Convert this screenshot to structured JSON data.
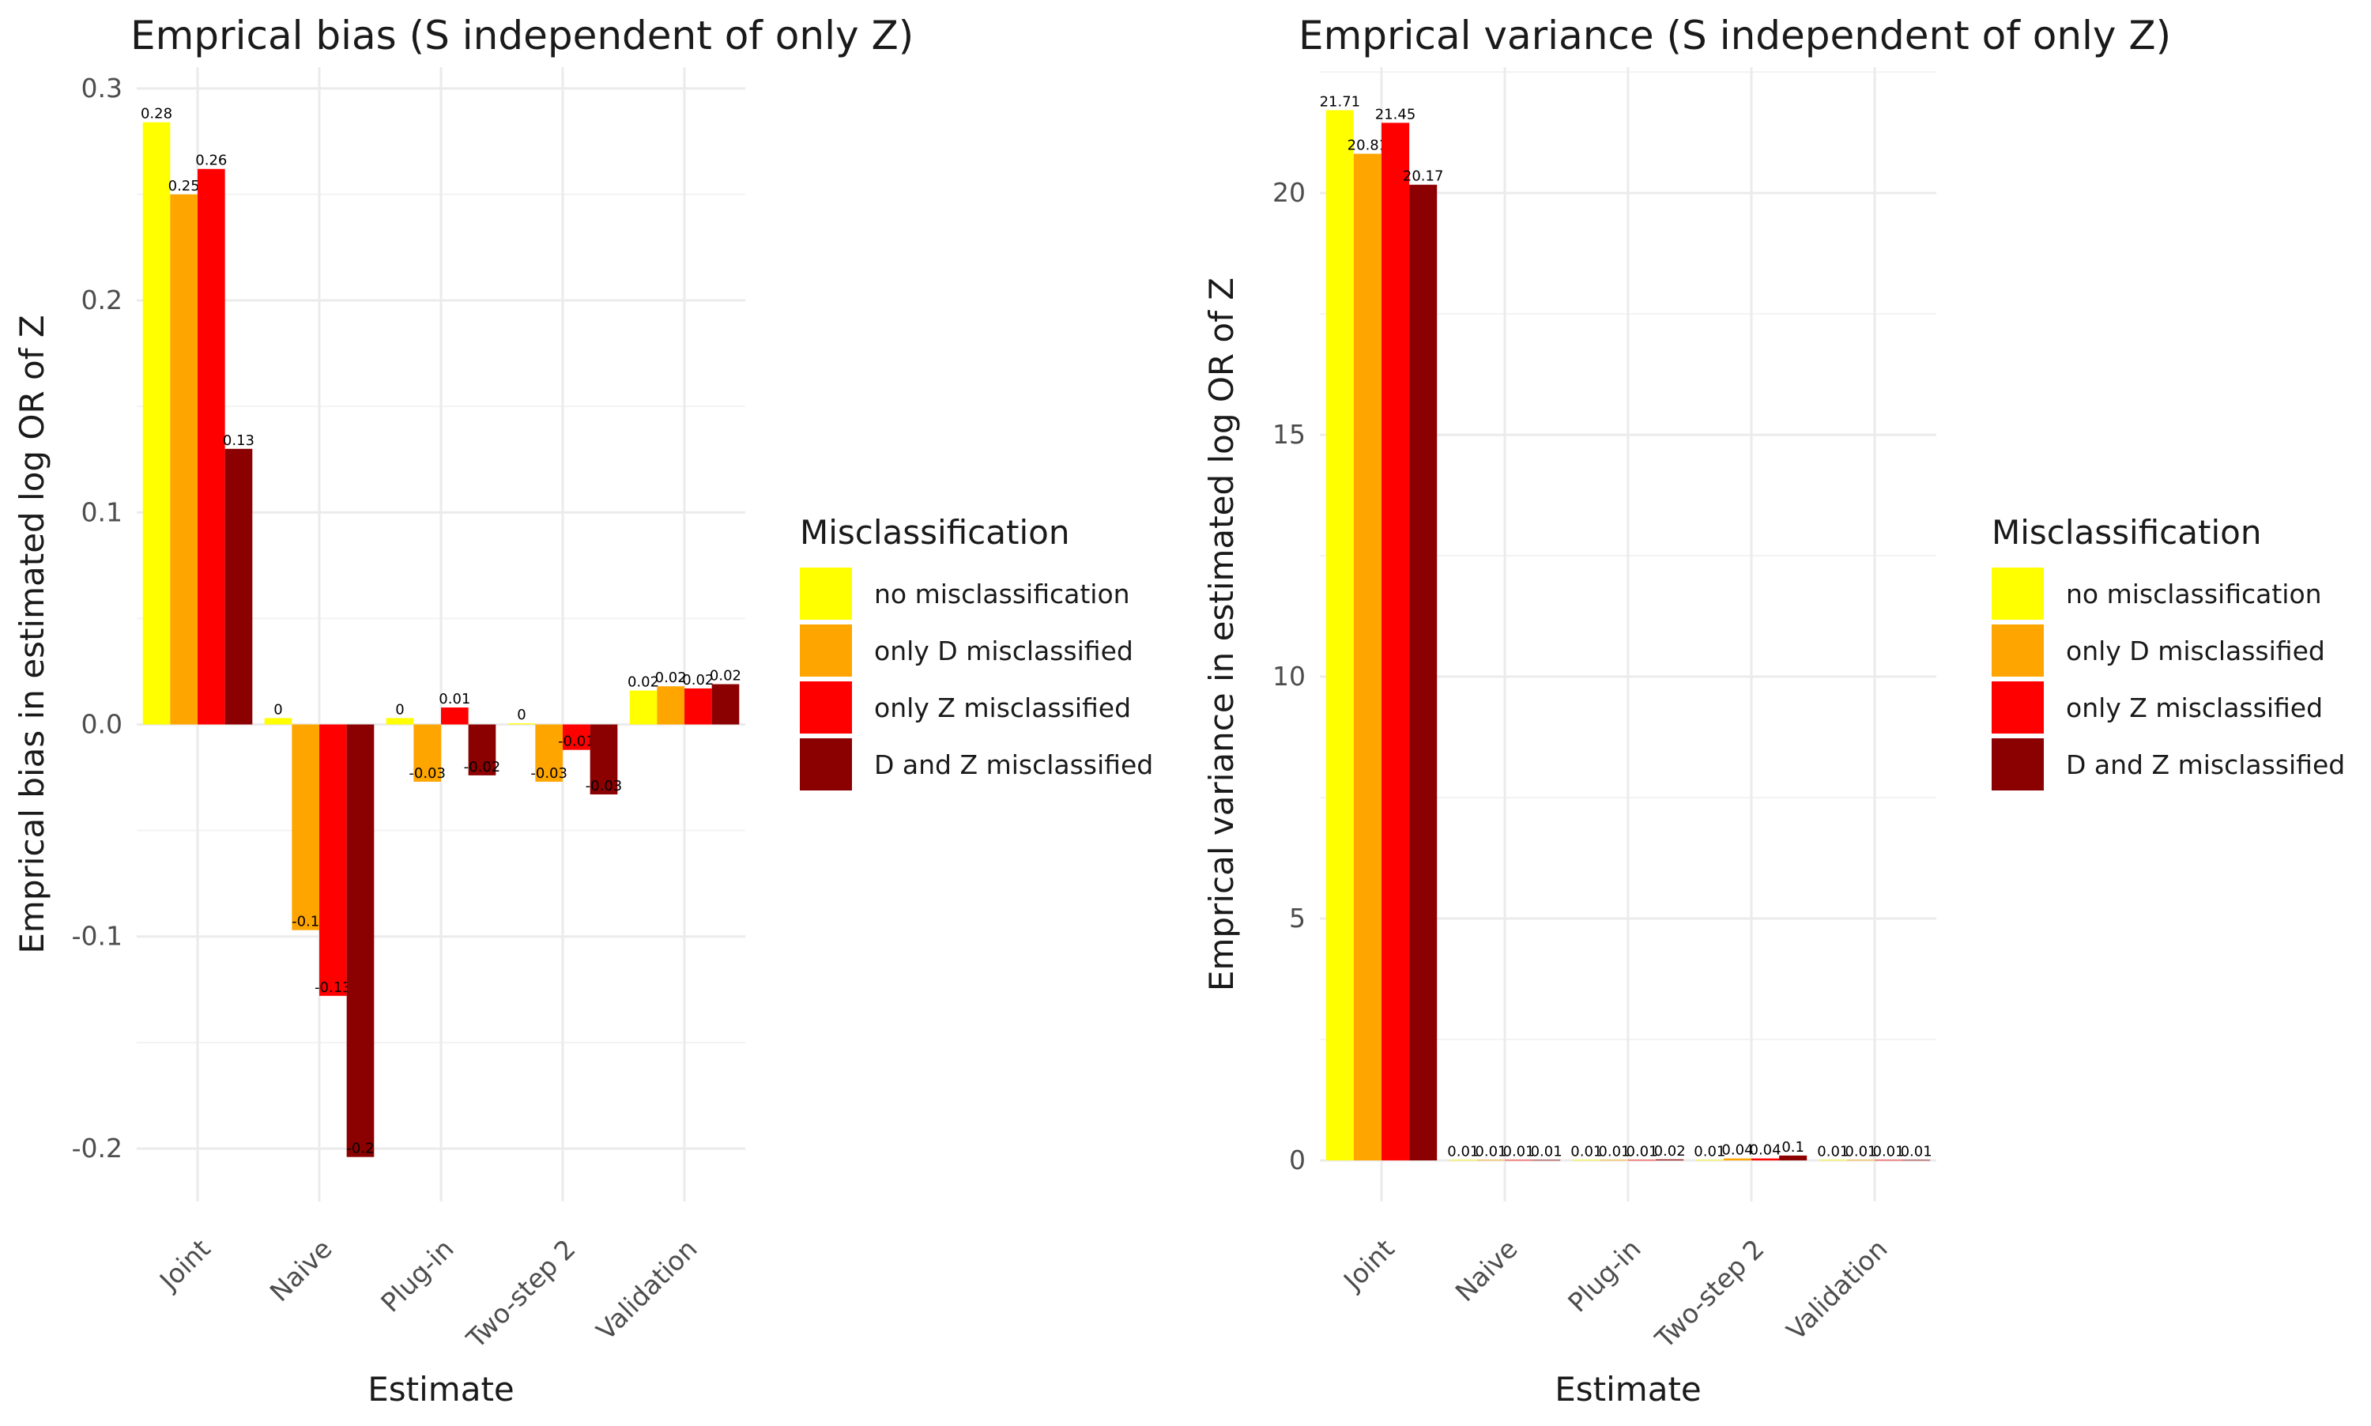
{
  "legend": {
    "title": "Misclassification",
    "items": [
      {
        "label": "no misclassification",
        "color": "#FFFF00"
      },
      {
        "label": "only D misclassified",
        "color": "#FFA500"
      },
      {
        "label": "only Z misclassified",
        "color": "#FF0000"
      },
      {
        "label": "D and Z misclassified",
        "color": "#8B0000"
      }
    ]
  },
  "chart_data": [
    {
      "type": "bar",
      "title": "Emprical bias (S independent of only Z)",
      "xlabel": "Estimate",
      "ylabel": "Emprical bias in estimated log OR of Z",
      "categories": [
        "Joint",
        "Naive",
        "Plug-in",
        "Two-step 2",
        "Validation"
      ],
      "ylim": [
        -0.225,
        0.31
      ],
      "yticks": [
        -0.2,
        -0.1,
        0.0,
        0.1,
        0.2,
        0.3
      ],
      "ytick_labels": [
        "-0.2",
        "-0.1",
        "0.0",
        "0.1",
        "0.2",
        "0.3"
      ],
      "grid": true,
      "legend_position": "right",
      "series": [
        {
          "name": "no misclassification",
          "values": [
            0.284,
            0.003,
            0.003,
            0.0005,
            0.016
          ],
          "labels": [
            "0.28",
            "0",
            "0",
            "0",
            "0.02"
          ]
        },
        {
          "name": "only D misclassified",
          "values": [
            0.25,
            -0.097,
            -0.027,
            -0.027,
            0.018
          ],
          "labels": [
            "0.25",
            "-0.1",
            "-0.03",
            "-0.03",
            "0.02"
          ]
        },
        {
          "name": "only Z misclassified",
          "values": [
            0.262,
            -0.128,
            0.008,
            -0.012,
            0.017
          ],
          "labels": [
            "0.26",
            "-0.13",
            "0.01",
            "-0.01",
            "0.02"
          ]
        },
        {
          "name": "D and Z misclassified",
          "values": [
            0.13,
            -0.204,
            -0.024,
            -0.033,
            0.019
          ],
          "labels": [
            "0.13",
            "-0.2",
            "-0.02",
            "-0.03",
            "0.02"
          ]
        }
      ]
    },
    {
      "type": "bar",
      "title": "Emprical variance (S independent of only Z)",
      "xlabel": "Estimate",
      "ylabel": "Emprical variance in estimated log OR of Z",
      "categories": [
        "Joint",
        "Naive",
        "Plug-in",
        "Two-step 2",
        "Validation"
      ],
      "ylim": [
        -0.85,
        22.6
      ],
      "yticks": [
        0,
        5,
        10,
        15,
        20
      ],
      "ytick_labels": [
        "0",
        "5",
        "10",
        "15",
        "20"
      ],
      "grid": true,
      "legend_position": "right",
      "series": [
        {
          "name": "no misclassification",
          "values": [
            21.71,
            0.01,
            0.01,
            0.01,
            0.01
          ],
          "labels": [
            "21.71",
            "0.01",
            "0.01",
            "0.01",
            "0.01"
          ]
        },
        {
          "name": "only D misclassified",
          "values": [
            20.81,
            0.01,
            0.01,
            0.04,
            0.01
          ],
          "labels": [
            "20.81",
            "0.01",
            "0.01",
            "0.04",
            "0.01"
          ]
        },
        {
          "name": "only Z misclassified",
          "values": [
            21.45,
            0.01,
            0.01,
            0.04,
            0.01
          ],
          "labels": [
            "21.45",
            "0.01",
            "0.01",
            "0.04",
            "0.01"
          ]
        },
        {
          "name": "D and Z misclassified",
          "values": [
            20.17,
            0.01,
            0.02,
            0.1,
            0.01
          ],
          "labels": [
            "20.17",
            "0.01",
            "0.02",
            "0.1",
            "0.01"
          ]
        }
      ]
    }
  ]
}
